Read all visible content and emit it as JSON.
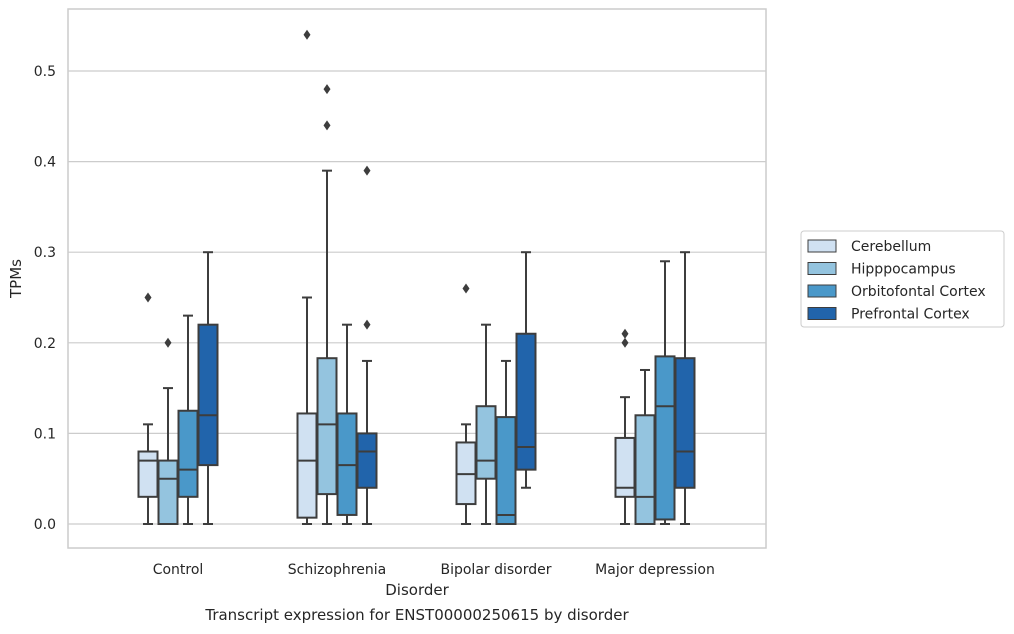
{
  "chart_data": {
    "type": "box",
    "caption": "Transcript expression for ENST00000250615 by disorder",
    "xlabel": "Disorder",
    "ylabel": "TPMs",
    "ylim": [
      -0.026,
      0.568
    ],
    "yticks": [
      "0.0",
      "0.1",
      "0.2",
      "0.3",
      "0.4",
      "0.5"
    ],
    "grid": true,
    "legend_position": "right",
    "categories": [
      "Control",
      "Schizophrenia",
      "Bipolar disorder",
      "Major depression"
    ],
    "series": [
      {
        "name": "Cerebellum",
        "color": "#d0e1f2",
        "boxes": [
          {
            "whislo": 0.0,
            "q1": 0.03,
            "med": 0.07,
            "q3": 0.08,
            "whishi": 0.11,
            "fliers": [
              0.25
            ]
          },
          {
            "whislo": 0.0,
            "q1": 0.007,
            "med": 0.07,
            "q3": 0.122,
            "whishi": 0.25,
            "fliers": [
              0.54
            ]
          },
          {
            "whislo": 0.0,
            "q1": 0.022,
            "med": 0.055,
            "q3": 0.09,
            "whishi": 0.11,
            "fliers": [
              0.26
            ]
          },
          {
            "whislo": 0.0,
            "q1": 0.03,
            "med": 0.04,
            "q3": 0.095,
            "whishi": 0.14,
            "fliers": [
              0.2,
              0.21
            ]
          }
        ]
      },
      {
        "name": "Hipppocampus",
        "color": "#94c4df",
        "boxes": [
          {
            "whislo": 0.0,
            "q1": 0.0,
            "med": 0.05,
            "q3": 0.07,
            "whishi": 0.15,
            "fliers": [
              0.2
            ]
          },
          {
            "whislo": 0.0,
            "q1": 0.033,
            "med": 0.11,
            "q3": 0.183,
            "whishi": 0.39,
            "fliers": [
              0.44,
              0.48
            ]
          },
          {
            "whislo": 0.0,
            "q1": 0.05,
            "med": 0.07,
            "q3": 0.13,
            "whishi": 0.22,
            "fliers": []
          },
          {
            "whislo": 0.0,
            "q1": 0.0,
            "med": 0.03,
            "q3": 0.12,
            "whishi": 0.17,
            "fliers": []
          }
        ]
      },
      {
        "name": "Orbitofontal Cortex",
        "color": "#4a98c9",
        "boxes": [
          {
            "whislo": 0.0,
            "q1": 0.03,
            "med": 0.06,
            "q3": 0.125,
            "whishi": 0.23,
            "fliers": []
          },
          {
            "whislo": 0.0,
            "q1": 0.01,
            "med": 0.065,
            "q3": 0.122,
            "whishi": 0.22,
            "fliers": []
          },
          {
            "whislo": 0.0,
            "q1": 0.0,
            "med": 0.01,
            "q3": 0.118,
            "whishi": 0.18,
            "fliers": []
          },
          {
            "whislo": 0.0,
            "q1": 0.005,
            "med": 0.13,
            "q3": 0.185,
            "whishi": 0.29,
            "fliers": []
          }
        ]
      },
      {
        "name": "Prefrontal Cortex",
        "color": "#2164ab",
        "boxes": [
          {
            "whislo": 0.0,
            "q1": 0.065,
            "med": 0.12,
            "q3": 0.22,
            "whishi": 0.3,
            "fliers": []
          },
          {
            "whislo": 0.0,
            "q1": 0.04,
            "med": 0.08,
            "q3": 0.1,
            "whishi": 0.18,
            "fliers": [
              0.22,
              0.39
            ]
          },
          {
            "whislo": 0.04,
            "q1": 0.06,
            "med": 0.085,
            "q3": 0.21,
            "whishi": 0.3,
            "fliers": []
          },
          {
            "whislo": 0.0,
            "q1": 0.04,
            "med": 0.08,
            "q3": 0.183,
            "whishi": 0.3,
            "fliers": []
          }
        ]
      }
    ]
  }
}
